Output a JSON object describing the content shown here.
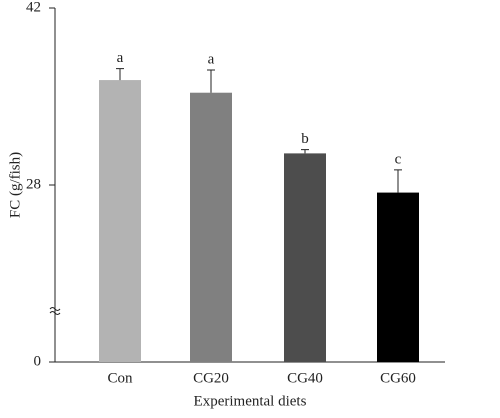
{
  "chart_data": {
    "type": "bar",
    "categories": [
      "Con",
      "CG20",
      "CG40",
      "CG60"
    ],
    "values": [
      36.3,
      35.3,
      30.5,
      27.4
    ],
    "errors": [
      0.9,
      1.8,
      0.3,
      1.8
    ],
    "labels": [
      "a",
      "a",
      "b",
      "c"
    ],
    "colors": [
      "#b3b3b3",
      "#808080",
      "#4d4d4d",
      "#000000"
    ],
    "xlabel": "Experimental diets",
    "ylabel": "FC (g/fish)",
    "ylim": [
      0,
      42
    ],
    "yticks": [
      0,
      28,
      42
    ],
    "axis_break": [
      0,
      14
    ]
  }
}
